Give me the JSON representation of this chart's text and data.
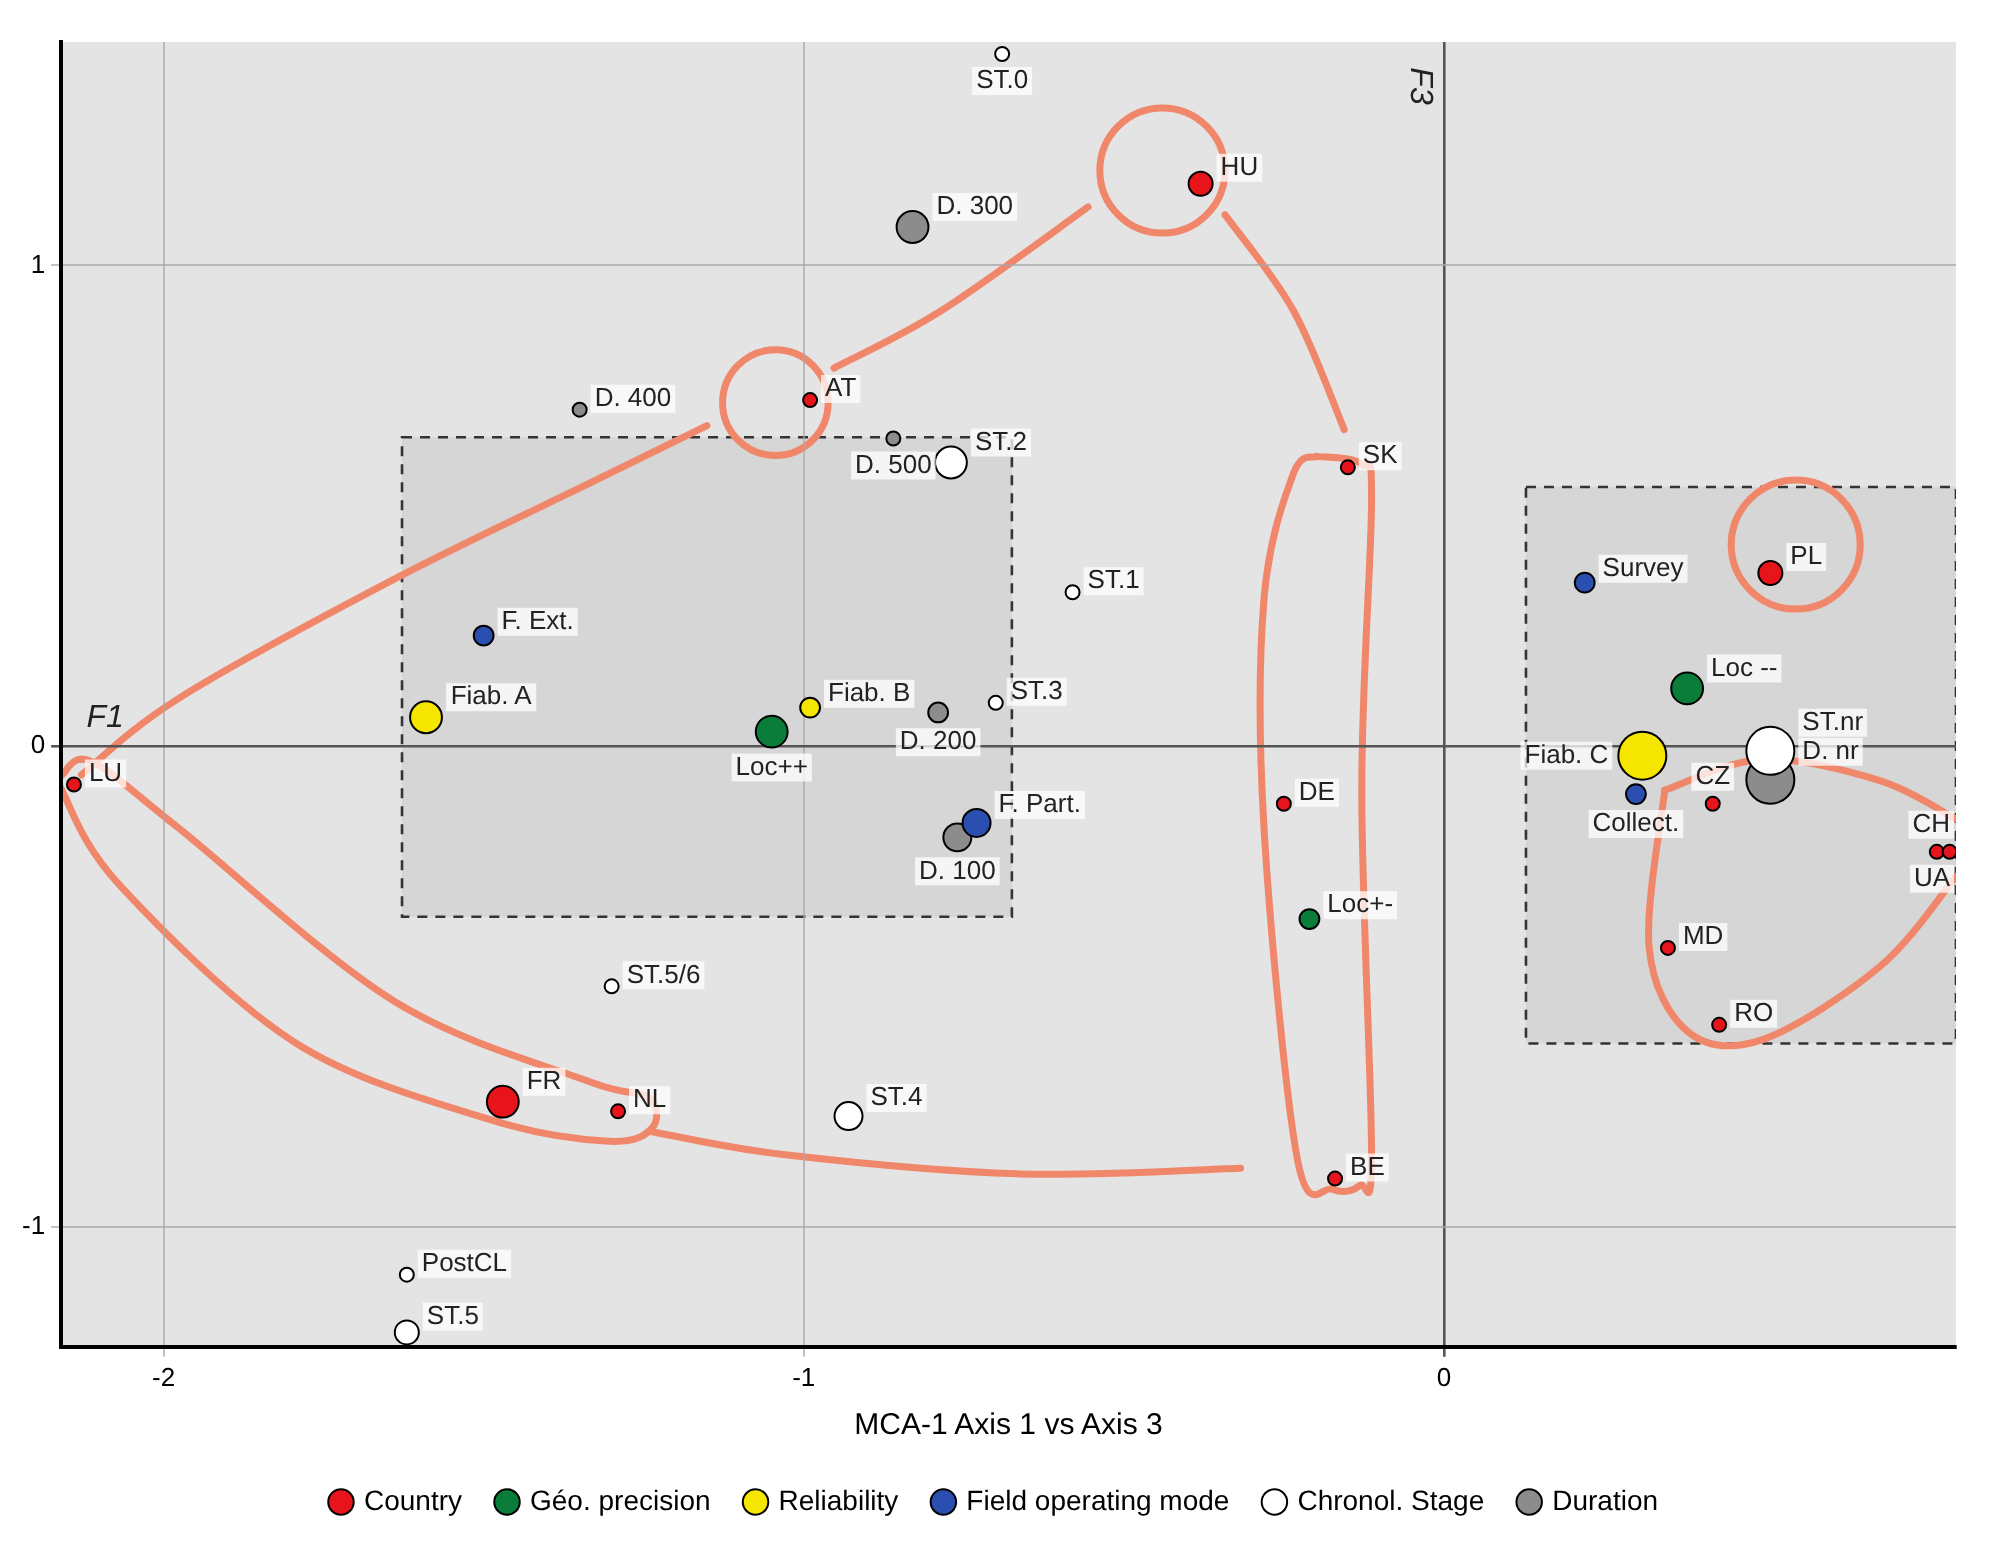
{
  "chart_data": {
    "type": "bubble",
    "xlabel": "MCA-1 Axis 1 vs Axis 3",
    "xlim": [
      -2.16,
      0.8
    ],
    "ylim": [
      -1.25,
      1.465
    ],
    "xticks": [
      -2,
      -1,
      0
    ],
    "yticks": [
      -1,
      0,
      1
    ],
    "grid": true,
    "legend": "bottom",
    "series": [
      {
        "name": "Country",
        "color": "#e8141c",
        "x": [
          -0.38,
          -0.99,
          -0.15,
          0.51,
          -2.14,
          -0.25,
          0.42,
          0.77,
          0.79,
          0.35,
          0.43,
          -1.47,
          -1.29,
          -0.17
        ],
        "values": [
          1.17,
          0.72,
          0.58,
          0.36,
          -0.08,
          -0.12,
          -0.12,
          -0.22,
          -0.22,
          -0.42,
          -0.58,
          -0.74,
          -0.76,
          -0.9
        ],
        "sizes": [
          0.25,
          0.085,
          0.085,
          0.25,
          0.085,
          0.085,
          0.085,
          0.085,
          0.085,
          0.085,
          0.085,
          0.44,
          0.085,
          0.085
        ]
      },
      {
        "name": "Géo. precision",
        "color": "#0a7d3a",
        "x": [
          -1.05,
          0.38,
          -0.21
        ],
        "values": [
          0.03,
          0.12,
          -0.36
        ],
        "sizes": [
          0.44,
          0.44,
          0.17
        ]
      },
      {
        "name": "Reliability",
        "color": "#f5e600",
        "x": [
          -1.59,
          -0.99,
          0.31
        ],
        "values": [
          0.06,
          0.08,
          -0.02
        ],
        "sizes": [
          0.44,
          0.17,
          1
        ]
      },
      {
        "name": "Field operating mode",
        "color": "#2b4fb0",
        "x": [
          -1.5,
          -0.73,
          0.22,
          0.3
        ],
        "values": [
          0.23,
          -0.16,
          0.34,
          -0.1
        ],
        "sizes": [
          0.17,
          0.34,
          0.17,
          0.17
        ]
      },
      {
        "name": "Chronol. Stage",
        "color": "#ffffff",
        "x": [
          -0.69,
          -0.77,
          -0.58,
          -0.7,
          -1.3,
          -0.93,
          -1.62,
          -1.62,
          0.51
        ],
        "values": [
          1.44,
          0.59,
          0.32,
          0.09,
          -0.5,
          -0.77,
          -1.1,
          -1.22,
          -0.01
        ],
        "sizes": [
          0.085,
          0.44,
          0.085,
          0.085,
          0.085,
          0.34,
          0.085,
          0.25,
          1
        ]
      },
      {
        "name": "Duration",
        "color": "#8c8c8c",
        "x": [
          -0.83,
          -1.35,
          -0.86,
          -0.79,
          -0.76,
          0.51
        ],
        "values": [
          1.08,
          0.7,
          0.64,
          0.07,
          -0.19,
          -0.07
        ],
        "sizes": [
          0.44,
          0.085,
          0.085,
          0.17,
          0.34,
          1
        ]
      }
    ],
    "annotations": [
      "F1",
      "F3",
      {
        "text": "HU",
        "x": -0.38,
        "y": 1.17
      },
      {
        "text": "AT",
        "x": -0.99,
        "y": 0.72
      },
      {
        "text": "SK",
        "x": -0.15,
        "y": 0.58
      },
      {
        "text": "PL",
        "x": 0.51,
        "y": 0.36
      },
      {
        "text": "LU",
        "x": -2.14,
        "y": -0.08
      },
      {
        "text": "DE",
        "x": -0.25,
        "y": -0.12
      },
      {
        "text": "CZ",
        "x": 0.42,
        "y": -0.12
      },
      {
        "text": "CH",
        "x": 0.77,
        "y": -0.22
      },
      {
        "text": "UA",
        "x": 0.79,
        "y": -0.22
      },
      {
        "text": "MD",
        "x": 0.35,
        "y": -0.42
      },
      {
        "text": "RO",
        "x": 0.43,
        "y": -0.58
      },
      {
        "text": "FR",
        "x": -1.47,
        "y": -0.74
      },
      {
        "text": "NL",
        "x": -1.29,
        "y": -0.76
      },
      {
        "text": "BE",
        "x": -0.17,
        "y": -0.9
      },
      {
        "text": "Loc++",
        "x": -1.05,
        "y": 0.03
      },
      {
        "text": "Loc --",
        "x": 0.38,
        "y": 0.12
      },
      {
        "text": "Loc+-",
        "x": -0.21,
        "y": -0.36
      },
      {
        "text": "Fiab. A",
        "x": -1.59,
        "y": 0.06
      },
      {
        "text": "Fiab. B",
        "x": -0.99,
        "y": 0.08
      },
      {
        "text": "Fiab. C",
        "x": 0.31,
        "y": -0.02
      },
      {
        "text": "F. Ext.",
        "x": -1.5,
        "y": 0.23
      },
      {
        "text": "F. Part.",
        "x": -0.73,
        "y": -0.16
      },
      {
        "text": "Survey",
        "x": 0.22,
        "y": 0.34
      },
      {
        "text": "Collect.",
        "x": 0.3,
        "y": -0.1
      },
      {
        "text": "ST.0",
        "x": -0.69,
        "y": 1.44
      },
      {
        "text": "ST.2",
        "x": -0.77,
        "y": 0.59
      },
      {
        "text": "ST.1",
        "x": -0.58,
        "y": 0.32
      },
      {
        "text": "ST.3",
        "x": -0.7,
        "y": 0.09
      },
      {
        "text": "ST.5/6",
        "x": -1.3,
        "y": -0.5
      },
      {
        "text": "ST.4",
        "x": -0.93,
        "y": -0.77
      },
      {
        "text": "PostCL",
        "x": -1.62,
        "y": -1.1
      },
      {
        "text": "ST.5",
        "x": -1.62,
        "y": -1.22
      },
      {
        "text": "ST.nr",
        "x": 0.51,
        "y": -0.01
      },
      {
        "text": "D. 300",
        "x": -0.83,
        "y": 1.08
      },
      {
        "text": "D. 400",
        "x": -1.35,
        "y": 0.7
      },
      {
        "text": "D. 500",
        "x": -0.86,
        "y": 0.64
      },
      {
        "text": "D. 200",
        "x": -0.79,
        "y": 0.07
      },
      {
        "text": "D. 100",
        "x": -0.76,
        "y": -0.19
      },
      {
        "text": "D. nr",
        "x": 0.51,
        "y": -0.07
      }
    ]
  }
}
